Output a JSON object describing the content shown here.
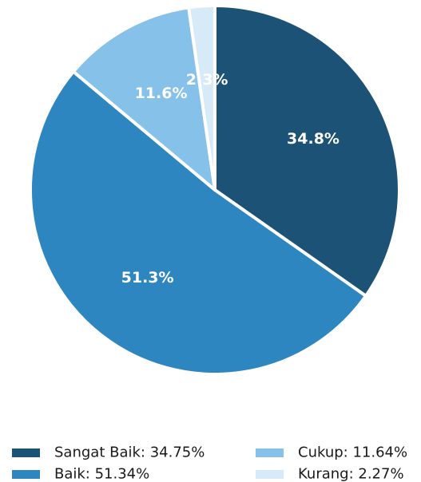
{
  "chart_data": {
    "type": "pie",
    "title": "",
    "slices": [
      {
        "name": "Sangat Baik",
        "value": 34.75,
        "label": "34.8%",
        "legend": "Sangat Baik: 34.75%",
        "color": "#1c5275"
      },
      {
        "name": "Baik",
        "value": 51.34,
        "label": "51.3%",
        "legend": "Baik: 51.34%",
        "color": "#2e86c1"
      },
      {
        "name": "Cukup",
        "value": 11.64,
        "label": "11.6%",
        "legend": "Cukup: 11.64%",
        "color": "#85c1e9"
      },
      {
        "name": "Kurang",
        "value": 2.27,
        "label": "2.3%",
        "legend": "Kurang: 2.27%",
        "color": "#d6eaf8"
      }
    ],
    "start_angle_deg": 90,
    "direction": "clockwise",
    "legend_position": "bottom"
  }
}
